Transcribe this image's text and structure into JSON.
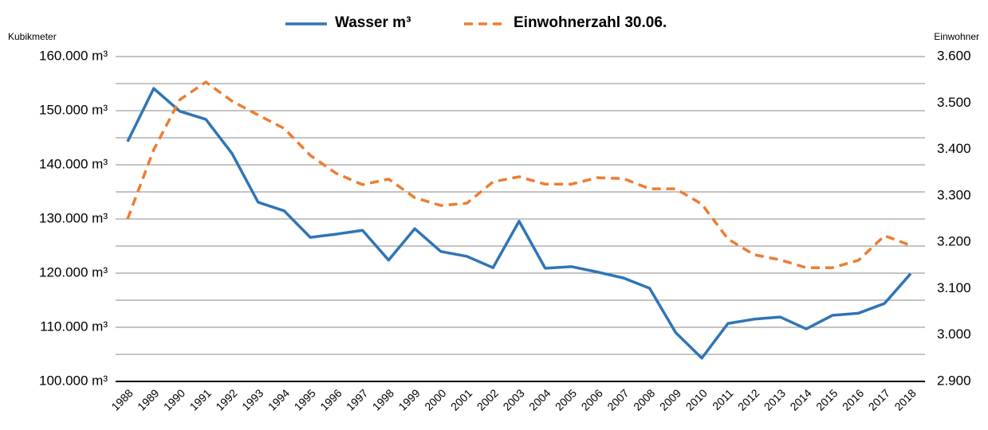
{
  "chart_data": {
    "type": "line",
    "x": [
      "1988",
      "1989",
      "1990",
      "1991",
      "1992",
      "1993",
      "1994",
      "1995",
      "1996",
      "1997",
      "1998",
      "1999",
      "2000",
      "2001",
      "2002",
      "2003",
      "2004",
      "2005",
      "2006",
      "2007",
      "2008",
      "2009",
      "2010",
      "2011",
      "2012",
      "2013",
      "2014",
      "2015",
      "2016",
      "2017",
      "2018"
    ],
    "series": [
      {
        "name": "Wasser m³",
        "color": "#2e75b6",
        "dash": false,
        "values": [
          144300,
          154100,
          149900,
          148400,
          142100,
          133100,
          131500,
          126600,
          127200,
          127900,
          122400,
          128200,
          124000,
          123100,
          121000,
          129600,
          120900,
          121200,
          120200,
          119100,
          117200,
          109000,
          104300,
          110700,
          111500,
          111900,
          109700,
          112200,
          112600,
          114400,
          119900
        ]
      },
      {
        "name": "Einwohnerzahl 30.06.",
        "color": "#ed7d31",
        "dash": true,
        "axis": "y2",
        "values": [
          3250,
          3399,
          3507,
          3545,
          3504,
          3474,
          3445,
          3387,
          3348,
          3324,
          3336,
          3296,
          3279,
          3284,
          3330,
          3341,
          3325,
          3325,
          3339,
          3337,
          3315,
          3315,
          3282,
          3207,
          3173,
          3162,
          3145,
          3145,
          3161,
          3214,
          3193
        ]
      }
    ],
    "ylabel": "Kubikmeter",
    "y2label": "Einwohner",
    "ylim": [
      100000,
      160000
    ],
    "yticks": [
      {
        "value": 100000,
        "label": "100.000 m³"
      },
      {
        "value": 110000,
        "label": "110.000 m³"
      },
      {
        "value": 120000,
        "label": "120.000 m³"
      },
      {
        "value": 130000,
        "label": "130.000 m³"
      },
      {
        "value": 140000,
        "label": "140.000 m³"
      },
      {
        "value": 150000,
        "label": "150.000 m³"
      },
      {
        "value": 160000,
        "label": "160.000 m³"
      }
    ],
    "y2lim": [
      2900,
      3600
    ],
    "y2ticks": [
      {
        "value": 2900,
        "label": "2.900"
      },
      {
        "value": 3000,
        "label": "3.000"
      },
      {
        "value": 3100,
        "label": "3.100"
      },
      {
        "value": 3200,
        "label": "3.200"
      },
      {
        "value": 3300,
        "label": "3.300"
      },
      {
        "value": 3400,
        "label": "3.400"
      },
      {
        "value": 3500,
        "label": "3.500"
      },
      {
        "value": 3600,
        "label": "3.600"
      }
    ],
    "grid": true,
    "minor_grid": true,
    "legend": "top"
  }
}
